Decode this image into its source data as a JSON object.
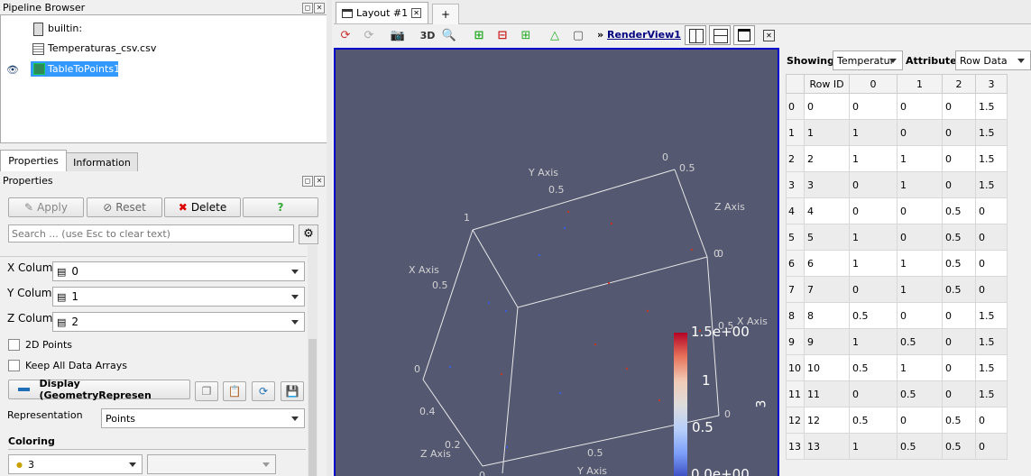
{
  "pipeline_browser": {
    "title": "Pipeline Browser",
    "items": [
      {
        "label": "builtin:"
      },
      {
        "label": "Temperaturas_csv.csv"
      },
      {
        "label": "TableToPoints1"
      }
    ]
  },
  "tabs": {
    "properties": "Properties",
    "information": "Information"
  },
  "properties": {
    "title": "Properties",
    "apply": "Apply",
    "reset": "Reset",
    "delete": "Delete",
    "help": "?",
    "search_placeholder": "Search ... (use Esc to clear text)",
    "x_column": {
      "label": "X Column",
      "value": "0"
    },
    "y_column": {
      "label": "Y Column",
      "value": "1"
    },
    "z_column": {
      "label": "Z Column",
      "value": "2"
    },
    "points2d": "2D Points",
    "keep_arrays": "Keep All Data Arrays",
    "display": "Display (GeometryRepresen",
    "representation": {
      "label": "Representation",
      "value": "Points"
    },
    "coloring": {
      "label": "Coloring",
      "value": "3"
    }
  },
  "layout_tab": {
    "label": "Layout #1",
    "add": "+"
  },
  "toolbar": {
    "threed": "3D",
    "view_name": "RenderView1",
    "prefix": "»"
  },
  "render": {
    "axis_labels": {
      "y_axis_top": "Y Axis",
      "z_axis": "Z Axis",
      "x_axis_left": "X Axis",
      "x_axis_right": "X Axis",
      "z_axis_bottom": "Z Axis",
      "y_axis_bottom": "Y Axis"
    },
    "ticks": {
      "t1": "0.5",
      "t2": "0",
      "t3": "0.5",
      "t4": "1",
      "t5": "0.5",
      "t6": "0",
      "t7": "0.4",
      "t8": "0.2",
      "t9": "0",
      "t10": "0.5",
      "t11": "0",
      "t12": "0.5",
      "t13": "0",
      "t14": "0"
    },
    "colorbar": {
      "max": "1.5e+00",
      "mid1": "1",
      "mid2": "0.5",
      "min": "0.0e+00",
      "title": "3"
    }
  },
  "spreadsheet": {
    "showing_label": "Showing",
    "showing_value": "Temperatur",
    "attribute_label": "Attribute:",
    "attribute_value": "Row Data",
    "columns": [
      "Row ID",
      "0",
      "1",
      "2",
      "3"
    ],
    "rows": [
      [
        "0",
        "0",
        "0",
        "0",
        "0",
        "1.5"
      ],
      [
        "1",
        "1",
        "1",
        "0",
        "0",
        "1.5"
      ],
      [
        "2",
        "2",
        "1",
        "1",
        "0",
        "1.5"
      ],
      [
        "3",
        "3",
        "0",
        "1",
        "0",
        "1.5"
      ],
      [
        "4",
        "4",
        "0",
        "0",
        "0.5",
        "0"
      ],
      [
        "5",
        "5",
        "1",
        "0",
        "0.5",
        "0"
      ],
      [
        "6",
        "6",
        "1",
        "1",
        "0.5",
        "0"
      ],
      [
        "7",
        "7",
        "0",
        "1",
        "0.5",
        "0"
      ],
      [
        "8",
        "8",
        "0.5",
        "0",
        "0",
        "1.5"
      ],
      [
        "9",
        "9",
        "1",
        "0.5",
        "0",
        "1.5"
      ],
      [
        "10",
        "10",
        "0.5",
        "1",
        "0",
        "1.5"
      ],
      [
        "11",
        "11",
        "0",
        "0.5",
        "0",
        "1.5"
      ],
      [
        "12",
        "12",
        "0.5",
        "0",
        "0.5",
        "0"
      ],
      [
        "13",
        "13",
        "1",
        "0.5",
        "0.5",
        "0"
      ]
    ]
  },
  "colors": {
    "render_bg": "#545871",
    "selection": "#3399ff",
    "accent_link": "#000080"
  }
}
